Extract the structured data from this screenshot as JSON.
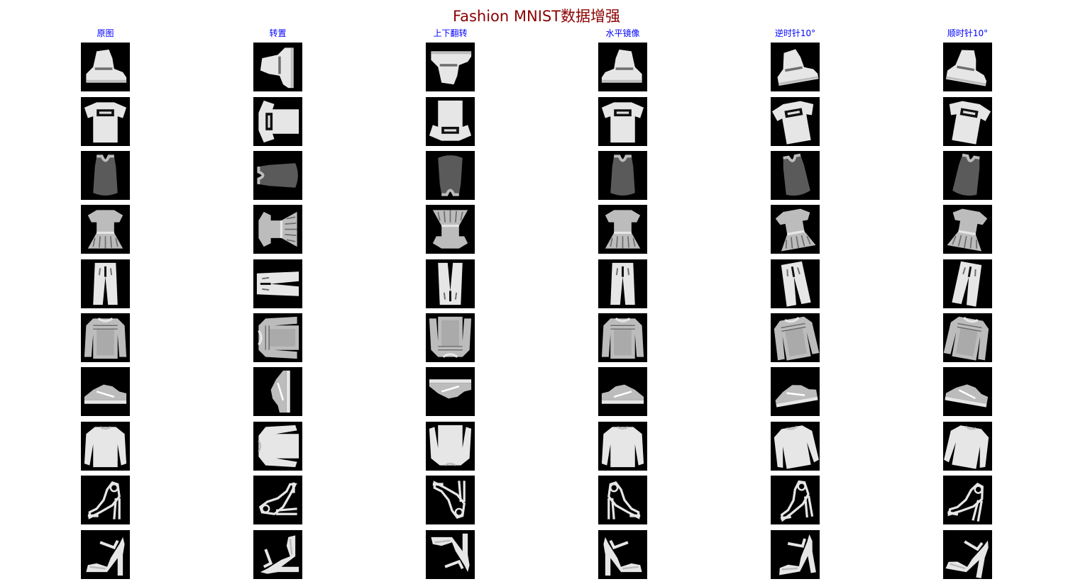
{
  "title": "Fashion MNIST数据增强",
  "colors": {
    "title": "#8b0000",
    "header": "#0000ff",
    "image_background": "#000000",
    "garment_light": "#e6e6e6",
    "garment_mid": "#bcbcbc",
    "garment_dark": "#6e6e6e"
  },
  "columns": [
    {
      "label": "原图",
      "transform": "original"
    },
    {
      "label": "转置",
      "transform": "transpose"
    },
    {
      "label": "上下翻转",
      "transform": "flip-vertical"
    },
    {
      "label": "水平镜像",
      "transform": "flip-horizontal"
    },
    {
      "label": "逆时针10°",
      "transform": "rotate-ccw-10"
    },
    {
      "label": "顺时针10°",
      "transform": "rotate-cw-10"
    }
  ],
  "rows": [
    {
      "item": "ankle-boot"
    },
    {
      "item": "t-shirt"
    },
    {
      "item": "tank-top"
    },
    {
      "item": "dress"
    },
    {
      "item": "trouser"
    },
    {
      "item": "pullover"
    },
    {
      "item": "sneaker"
    },
    {
      "item": "long-sleeve-shirt"
    },
    {
      "item": "strappy-sandal"
    },
    {
      "item": "heeled-sandal"
    }
  ]
}
